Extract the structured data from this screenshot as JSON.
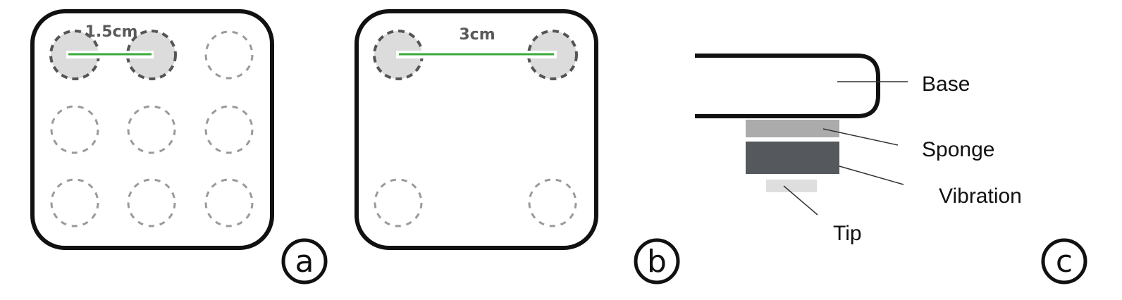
{
  "panel_a": {
    "badge": "a",
    "distance_label": "1.5cm"
  },
  "panel_b": {
    "badge": "b",
    "distance_label": "3cm"
  },
  "panel_c": {
    "badge": "c",
    "parts": {
      "base": "Base",
      "sponge": "Sponge",
      "vibration": "Vibration",
      "tip": "Tip"
    }
  },
  "colors": {
    "outline": "#111111",
    "active_fill": "#dcdcdc",
    "active_ring": "#555555",
    "inactive_ring": "#9a9a9a",
    "distance_line": "#3aaa3a",
    "sponge": "#ababab",
    "vibration": "#55585d",
    "tip": "#dedede"
  }
}
